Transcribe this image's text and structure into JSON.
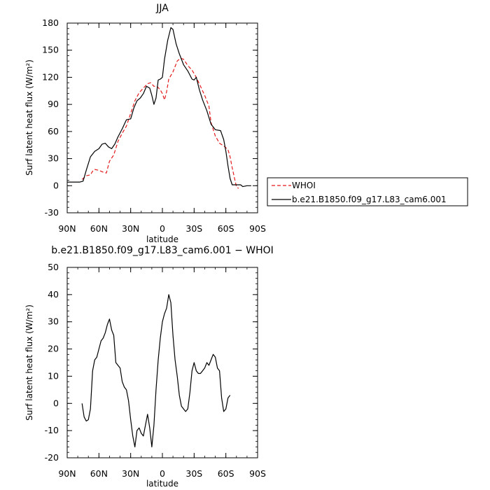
{
  "chart_data": [
    {
      "type": "line",
      "title": "JJA",
      "xlabel": "latitude",
      "ylabel": "Surf latent heat flux (W/m²)",
      "ylim": [
        -30,
        180
      ],
      "yticks": [
        -30,
        0,
        30,
        60,
        90,
        120,
        150,
        180
      ],
      "xlim": [
        90,
        -90
      ],
      "xticks": [
        90,
        60,
        30,
        0,
        -30,
        -60,
        -90
      ],
      "xtick_labels": [
        "90N",
        "60N",
        "30N",
        "0",
        "30S",
        "60S",
        "90S"
      ],
      "legend": "right",
      "series": [
        {
          "name": "WHOI",
          "color": "#e41a1c",
          "dash": "dashed",
          "points": [
            [
              76,
              7
            ],
            [
              72,
              11
            ],
            [
              68,
              12
            ],
            [
              66,
              16
            ],
            [
              64,
              18
            ],
            [
              60,
              17
            ],
            [
              56,
              15
            ],
            [
              53,
              14
            ],
            [
              50,
              27
            ],
            [
              46,
              34
            ],
            [
              42,
              49
            ],
            [
              38,
              58
            ],
            [
              34,
              66
            ],
            [
              30,
              80
            ],
            [
              26,
              94
            ],
            [
              22,
              103
            ],
            [
              18,
              108
            ],
            [
              14,
              113
            ],
            [
              11,
              114
            ],
            [
              8,
              110
            ],
            [
              5,
              110
            ],
            [
              2,
              106
            ],
            [
              0,
              102
            ],
            [
              -2,
              95
            ],
            [
              -4,
              104
            ],
            [
              -6,
              118
            ],
            [
              -10,
              126
            ],
            [
              -14,
              138
            ],
            [
              -17,
              141
            ],
            [
              -20,
              140
            ],
            [
              -24,
              133
            ],
            [
              -28,
              128
            ],
            [
              -32,
              120
            ],
            [
              -36,
              110
            ],
            [
              -40,
              100
            ],
            [
              -44,
              88
            ],
            [
              -46,
              70
            ],
            [
              -50,
              55
            ],
            [
              -54,
              47
            ],
            [
              -58,
              44
            ],
            [
              -62,
              40
            ],
            [
              -64,
              32
            ],
            [
              -66,
              20
            ],
            [
              -68,
              9
            ],
            [
              -70,
              -1
            ],
            [
              -72,
              -3
            ]
          ]
        },
        {
          "name": "b.e21.B1850.f09_g17.L83_cam6.001",
          "color": "#000000",
          "dash": "solid",
          "points": [
            [
              90,
              4
            ],
            [
              86,
              4
            ],
            [
              82,
              4
            ],
            [
              78,
              4
            ],
            [
              75,
              5
            ],
            [
              72,
              17
            ],
            [
              68,
              32
            ],
            [
              64,
              38
            ],
            [
              60,
              41
            ],
            [
              57,
              46
            ],
            [
              54,
              47
            ],
            [
              51,
              43
            ],
            [
              48,
              41
            ],
            [
              45,
              46
            ],
            [
              42,
              54
            ],
            [
              38,
              63
            ],
            [
              34,
              73
            ],
            [
              30,
              74
            ],
            [
              27,
              86
            ],
            [
              24,
              94
            ],
            [
              21,
              97
            ],
            [
              18,
              102
            ],
            [
              15,
              110
            ],
            [
              12,
              108
            ],
            [
              10,
              100
            ],
            [
              8,
              90
            ],
            [
              6,
              97
            ],
            [
              4,
              117
            ],
            [
              2,
              118
            ],
            [
              0,
              120
            ],
            [
              -2,
              140
            ],
            [
              -5,
              161
            ],
            [
              -8,
              175
            ],
            [
              -10,
              173
            ],
            [
              -13,
              157
            ],
            [
              -16,
              146
            ],
            [
              -20,
              134
            ],
            [
              -24,
              127
            ],
            [
              -28,
              118
            ],
            [
              -30,
              117
            ],
            [
              -32,
              120
            ],
            [
              -35,
              106
            ],
            [
              -38,
              95
            ],
            [
              -42,
              83
            ],
            [
              -46,
              68
            ],
            [
              -50,
              62
            ],
            [
              -55,
              61
            ],
            [
              -58,
              51
            ],
            [
              -60,
              38
            ],
            [
              -62,
              22
            ],
            [
              -64,
              8
            ],
            [
              -66,
              1
            ],
            [
              -70,
              1
            ],
            [
              -74,
              1
            ],
            [
              -76,
              -1
            ],
            [
              -80,
              0
            ],
            [
              -84,
              0
            ]
          ]
        }
      ]
    },
    {
      "type": "line",
      "title": "b.e21.B1850.f09_g17.L83_cam6.001 − WHOI",
      "xlabel": "latitude",
      "ylabel": "Surf latent heat flux (W/m²)",
      "ylim": [
        -20,
        50
      ],
      "yticks": [
        -20,
        -10,
        0,
        10,
        20,
        30,
        40,
        50
      ],
      "xlim": [
        90,
        -90
      ],
      "xticks": [
        90,
        60,
        30,
        0,
        -30,
        -60,
        -90
      ],
      "xtick_labels": [
        "90N",
        "60N",
        "30N",
        "0",
        "30S",
        "60S",
        "90S"
      ],
      "series": [
        {
          "color": "#000000",
          "dash": "solid",
          "points": [
            [
              76,
              0
            ],
            [
              74,
              -5
            ],
            [
              72,
              -6.5
            ],
            [
              70,
              -6
            ],
            [
              68,
              -2
            ],
            [
              66,
              12
            ],
            [
              64,
              16
            ],
            [
              62,
              17
            ],
            [
              60,
              20
            ],
            [
              58,
              23
            ],
            [
              56,
              24
            ],
            [
              54,
              26
            ],
            [
              52,
              29
            ],
            [
              50,
              31
            ],
            [
              48,
              27
            ],
            [
              46,
              25
            ],
            [
              44,
              15
            ],
            [
              42,
              14
            ],
            [
              40,
              13
            ],
            [
              38,
              8
            ],
            [
              36,
              6
            ],
            [
              34,
              5
            ],
            [
              32,
              1
            ],
            [
              30,
              -6
            ],
            [
              28,
              -12
            ],
            [
              26,
              -16
            ],
            [
              24,
              -10
            ],
            [
              22,
              -9
            ],
            [
              20,
              -11
            ],
            [
              18,
              -12
            ],
            [
              16,
              -8
            ],
            [
              14,
              -4
            ],
            [
              12,
              -9
            ],
            [
              10,
              -16
            ],
            [
              8,
              -8
            ],
            [
              6,
              5
            ],
            [
              4,
              16
            ],
            [
              2,
              24
            ],
            [
              0,
              30
            ],
            [
              -2,
              33
            ],
            [
              -4,
              35
            ],
            [
              -6,
              40
            ],
            [
              -8,
              37
            ],
            [
              -10,
              25
            ],
            [
              -12,
              16
            ],
            [
              -14,
              10
            ],
            [
              -16,
              3
            ],
            [
              -18,
              -1
            ],
            [
              -20,
              -2
            ],
            [
              -22,
              -3
            ],
            [
              -24,
              -2
            ],
            [
              -26,
              4
            ],
            [
              -28,
              12
            ],
            [
              -30,
              15
            ],
            [
              -32,
              12
            ],
            [
              -34,
              11
            ],
            [
              -36,
              11
            ],
            [
              -38,
              12
            ],
            [
              -40,
              13
            ],
            [
              -42,
              15
            ],
            [
              -44,
              14
            ],
            [
              -46,
              16
            ],
            [
              -48,
              18
            ],
            [
              -50,
              17
            ],
            [
              -52,
              13
            ],
            [
              -54,
              12
            ],
            [
              -56,
              2
            ],
            [
              -58,
              -3
            ],
            [
              -60,
              -2
            ],
            [
              -62,
              2
            ],
            [
              -64,
              3
            ]
          ]
        }
      ]
    }
  ]
}
